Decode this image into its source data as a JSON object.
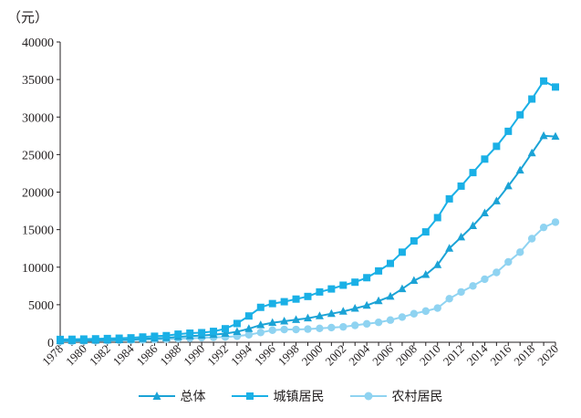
{
  "chart_data": {
    "type": "line",
    "unit_label": "（元）",
    "title": "",
    "xlabel": "",
    "ylabel": "",
    "ylim": [
      0,
      40000
    ],
    "yticks": [
      0,
      5000,
      10000,
      15000,
      20000,
      25000,
      30000,
      35000,
      40000
    ],
    "x": [
      1978,
      1979,
      1980,
      1981,
      1982,
      1983,
      1984,
      1985,
      1986,
      1987,
      1988,
      1989,
      1990,
      1991,
      1992,
      1993,
      1994,
      1995,
      1996,
      1997,
      1998,
      1999,
      2000,
      2001,
      2002,
      2003,
      2004,
      2005,
      2006,
      2007,
      2008,
      2009,
      2010,
      2011,
      2012,
      2013,
      2014,
      2015,
      2016,
      2017,
      2018,
      2019,
      2020
    ],
    "xtick_labels": [
      "1978",
      "1980",
      "1982",
      "1984",
      "1986",
      "1988",
      "1990",
      "1992",
      "1994",
      "1996",
      "1998",
      "2000",
      "2002",
      "2004",
      "2006",
      "2008",
      "2010",
      "2012",
      "2014",
      "2016",
      "2018",
      "2020"
    ],
    "grid": false,
    "legend_position": "bottom",
    "series": [
      {
        "name": "总体",
        "color": "#1ba3d6",
        "marker": "triangle",
        "values": [
          171,
          190,
          220,
          250,
          280,
          310,
          350,
          450,
          520,
          580,
          720,
          820,
          900,
          1000,
          1150,
          1400,
          1800,
          2300,
          2600,
          2800,
          3000,
          3200,
          3500,
          3800,
          4100,
          4500,
          4900,
          5500,
          6100,
          7100,
          8200,
          9000,
          10300,
          12500,
          14000,
          15500,
          17200,
          18800,
          20800,
          22900,
          25200,
          27500,
          27400
        ]
      },
      {
        "name": "城镇居民",
        "color": "#1ab0e6",
        "marker": "square",
        "values": [
          380,
          400,
          430,
          460,
          500,
          540,
          590,
          700,
          800,
          880,
          1080,
          1210,
          1280,
          1450,
          1800,
          2500,
          3500,
          4650,
          5150,
          5400,
          5750,
          6100,
          6700,
          7100,
          7600,
          8000,
          8600,
          9500,
          10500,
          12000,
          13500,
          14700,
          16600,
          19100,
          20800,
          22600,
          24400,
          26100,
          28100,
          30300,
          32400,
          34800,
          34000
        ]
      },
      {
        "name": "农村居民",
        "color": "#8fd3f1",
        "marker": "circle",
        "values": [
          116,
          130,
          160,
          190,
          220,
          250,
          280,
          320,
          360,
          400,
          470,
          530,
          600,
          650,
          700,
          800,
          1000,
          1300,
          1600,
          1700,
          1700,
          1750,
          1850,
          1950,
          2050,
          2250,
          2450,
          2650,
          2950,
          3350,
          3800,
          4150,
          4550,
          5800,
          6700,
          7500,
          8400,
          9300,
          10700,
          12000,
          13800,
          15300,
          16000
        ]
      }
    ]
  }
}
